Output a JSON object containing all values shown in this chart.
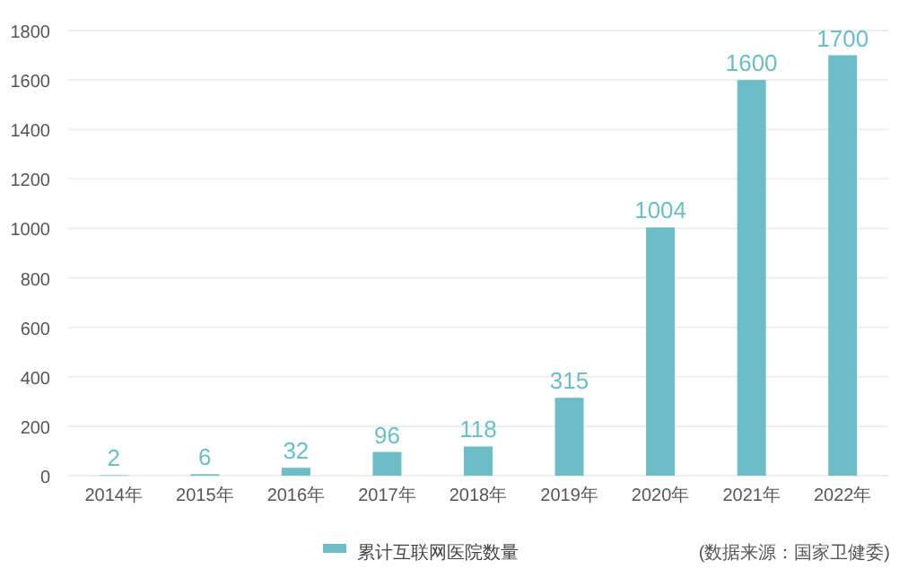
{
  "chart_data": {
    "type": "bar",
    "categories": [
      "2014年",
      "2015年",
      "2016年",
      "2017年",
      "2018年",
      "2019年",
      "2020年",
      "2021年",
      "2022年"
    ],
    "series": [
      {
        "name": "累计互联网医院数量",
        "color": "#6dbdc6",
        "values": [
          2,
          6,
          32,
          96,
          118,
          315,
          1004,
          1600,
          1700
        ]
      }
    ],
    "ylim": [
      0,
      1800
    ],
    "yticks": [
      0,
      200,
      400,
      600,
      800,
      1000,
      1200,
      1400,
      1600,
      1800
    ],
    "grid": "y",
    "data_labels": true,
    "legend": "bottom",
    "annotations": [
      "(数据来源：国家卫健委)"
    ]
  }
}
